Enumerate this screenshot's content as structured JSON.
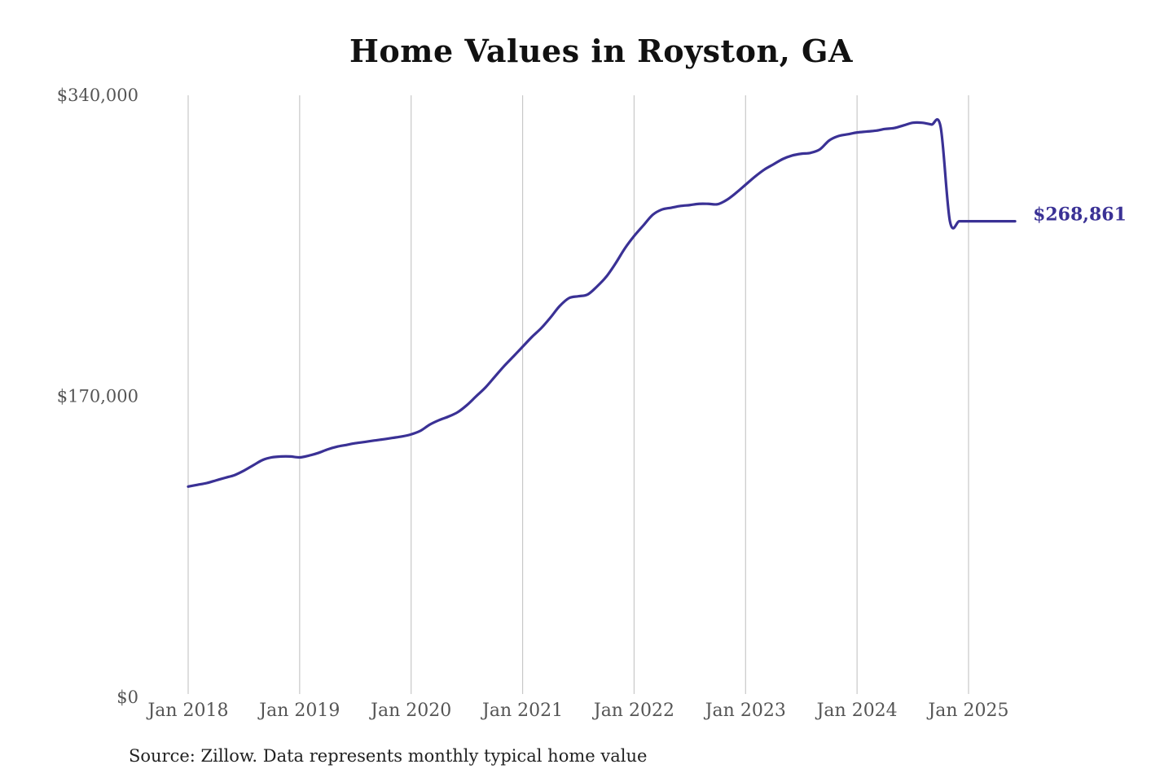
{
  "chart_data": {
    "type": "line",
    "title": "Home Values in Royston, GA",
    "xlabel": "",
    "ylabel": "",
    "ylim": [
      0,
      340000
    ],
    "y_ticks": [
      {
        "value": 0,
        "label": "$0"
      },
      {
        "value": 170000,
        "label": "$170,000"
      },
      {
        "value": 340000,
        "label": "$340,000"
      }
    ],
    "x_ticks": [
      {
        "value": 2018.0,
        "label": "Jan 2018"
      },
      {
        "value": 2019.0,
        "label": "Jan 2019"
      },
      {
        "value": 2020.0,
        "label": "Jan 2020"
      },
      {
        "value": 2021.0,
        "label": "Jan 2021"
      },
      {
        "value": 2022.0,
        "label": "Jan 2022"
      },
      {
        "value": 2023.0,
        "label": "Jan 2023"
      },
      {
        "value": 2024.0,
        "label": "Jan 2024"
      },
      {
        "value": 2025.0,
        "label": "Jan 2025"
      }
    ],
    "grid": "vertical",
    "line_color": "#3a3195",
    "end_label": "$268,861",
    "series": [
      {
        "x": [
          2018.0,
          2018.083,
          2018.167,
          2018.25,
          2018.333,
          2018.417,
          2018.5,
          2018.583,
          2018.667,
          2018.75,
          2018.833,
          2018.917,
          2019.0,
          2019.083,
          2019.167,
          2019.25,
          2019.333,
          2019.417,
          2019.5,
          2019.583,
          2019.667,
          2019.75,
          2019.833,
          2019.917,
          2020.0,
          2020.083,
          2020.167,
          2020.25,
          2020.333,
          2020.417,
          2020.5,
          2020.583,
          2020.667,
          2020.75,
          2020.833,
          2020.917,
          2021.0,
          2021.083,
          2021.167,
          2021.25,
          2021.333,
          2021.417,
          2021.5,
          2021.583,
          2021.667,
          2021.75,
          2021.833,
          2021.917,
          2022.0,
          2022.083,
          2022.167,
          2022.25,
          2022.333,
          2022.417,
          2022.5,
          2022.583,
          2022.667,
          2022.75,
          2022.833,
          2022.917,
          2023.0,
          2023.083,
          2023.167,
          2023.25,
          2023.333,
          2023.417,
          2023.5,
          2023.583,
          2023.667,
          2023.75,
          2023.833,
          2023.917,
          2024.0,
          2024.083,
          2024.167,
          2024.25,
          2024.333,
          2024.417,
          2024.5,
          2024.583,
          2024.667,
          2024.75,
          2024.833,
          2024.917,
          2025.0,
          2025.083,
          2025.167,
          2025.25,
          2025.333,
          2025.417
        ],
        "values": [
          119000,
          120000,
          121000,
          122500,
          124000,
          125500,
          128000,
          131000,
          134000,
          135500,
          136000,
          136000,
          135500,
          136500,
          138000,
          140000,
          141500,
          142500,
          143500,
          144200,
          145000,
          145700,
          146500,
          147300,
          148500,
          150500,
          154000,
          156500,
          158500,
          161000,
          165000,
          170000,
          175000,
          181000,
          187000,
          192500,
          198000,
          203500,
          208500,
          214500,
          221000,
          225500,
          226500,
          227500,
          232000,
          237500,
          245000,
          253500,
          260500,
          266500,
          272500,
          275500,
          276500,
          277500,
          278000,
          278700,
          278700,
          278500,
          281000,
          285000,
          289500,
          294000,
          298000,
          301000,
          304000,
          306000,
          307000,
          307500,
          309500,
          314500,
          317000,
          318000,
          319000,
          319500,
          320000,
          321000,
          321500,
          323000,
          324500,
          324500,
          323500,
          322000,
          268861,
          268861,
          268861,
          268861,
          268861,
          268861,
          268861,
          268861
        ]
      }
    ]
  },
  "source": "Source: Zillow. Data represents monthly typical home value"
}
